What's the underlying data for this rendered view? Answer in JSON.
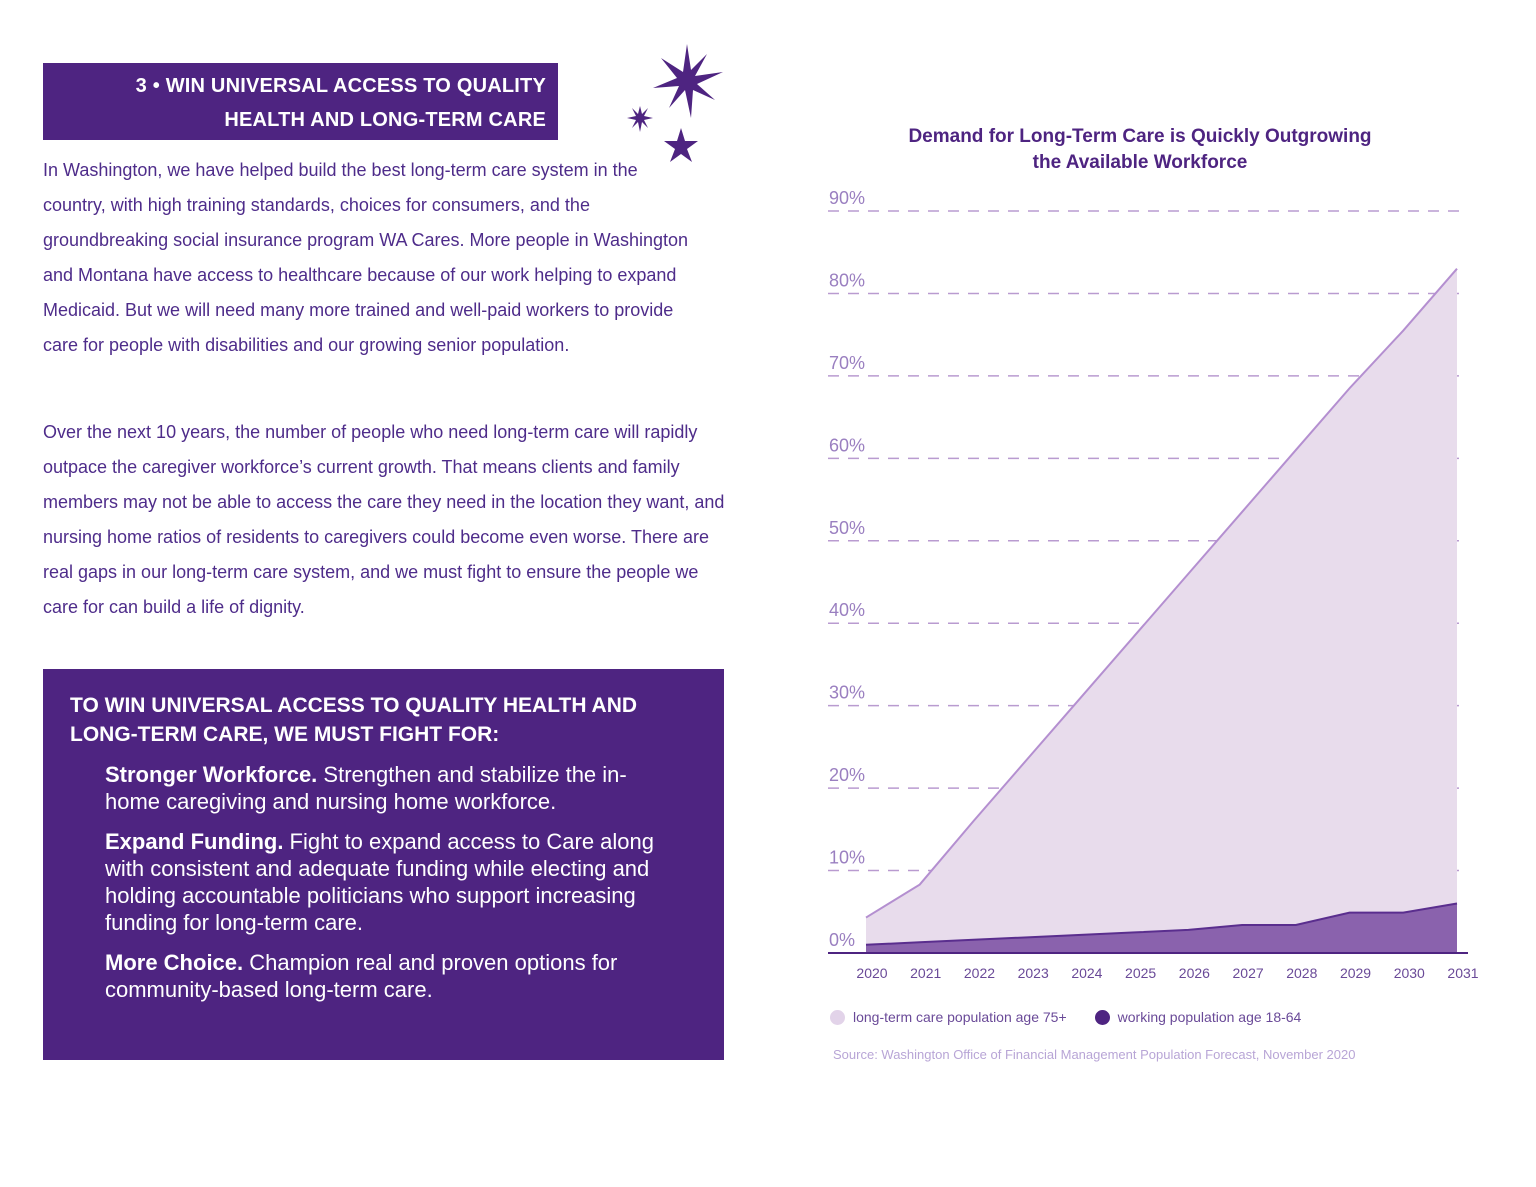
{
  "section": {
    "line1": "3 • WIN UNIVERSAL ACCESS TO QUALITY",
    "line2": "HEALTH AND LONG-TERM CARE"
  },
  "icons": {
    "stars": "sparkle-stars-icon"
  },
  "colors": {
    "brand_purple": "#4e2481",
    "light_purple": "#e8dcec",
    "dark_area": "#8a62ad"
  },
  "paragraphs": [
    "In Washington, we have helped build the best long-term care system in the country, with high training standards, choices for consumers, and the groundbreaking social insurance program WA Cares. More people in Washington and Montana have access to healthcare because of our work helping to expand Medicaid. But we will need many more trained and well-paid workers to provide care for people with disabilities and our growing senior population.",
    "Over the next 10 years, the number of people who need long-term care will rapidly outpace the caregiver workforce’s current growth. That means clients and family members may not be able to access the care they need in the location they want, and nursing home ratios of residents to caregivers could become even worse. There are real gaps in our long-term care system, and we must fight to ensure the people we care for can build a life of dignity."
  ],
  "fight_box": {
    "heading": "TO WIN UNIVERSAL ACCESS TO QUALITY HEALTH AND LONG-TERM CARE, WE MUST FIGHT FOR:",
    "items": [
      {
        "title": "Stronger Workforce.",
        "text": " Strengthen and stabilize the in-home caregiving and nursing home workforce."
      },
      {
        "title": "Expand Funding.",
        "text": " Fight to expand access to Care along with consistent and adequate funding while electing and holding accountable politicians who support increasing funding for long-term care."
      },
      {
        "title": "More Choice.",
        "text": " Champion real and proven options for community-based long-term care."
      }
    ]
  },
  "chart_data": {
    "type": "area",
    "title": "Demand for Long-Term Care is Quickly Outgrowing the Available Workforce",
    "x": [
      "2020",
      "2021",
      "2022",
      "2023",
      "2024",
      "2025",
      "2026",
      "2027",
      "2028",
      "2029",
      "2030",
      "2031"
    ],
    "ylim": [
      0,
      90
    ],
    "yticks": [
      "0%",
      "10%",
      "20%",
      "30%",
      "40%",
      "50%",
      "60%",
      "70%",
      "80%",
      "90%"
    ],
    "grid": true,
    "legend_position": "bottom-left",
    "series": [
      {
        "name": "long-term care population age 75+",
        "color": "#e8dcec",
        "values": [
          4.3,
          8.3,
          16,
          23.5,
          31,
          38.5,
          46,
          53.5,
          61,
          68.5,
          75.5,
          83
        ]
      },
      {
        "name": "working population age 18-64",
        "color": "#8a62ad",
        "values": [
          1.0,
          1.3,
          1.6,
          1.9,
          2.2,
          2.5,
          2.8,
          3.4,
          3.4,
          4.9,
          4.9,
          6.0
        ]
      }
    ],
    "source": "Source: Washington Office of Financial Management Population Forecast, November 2020"
  }
}
